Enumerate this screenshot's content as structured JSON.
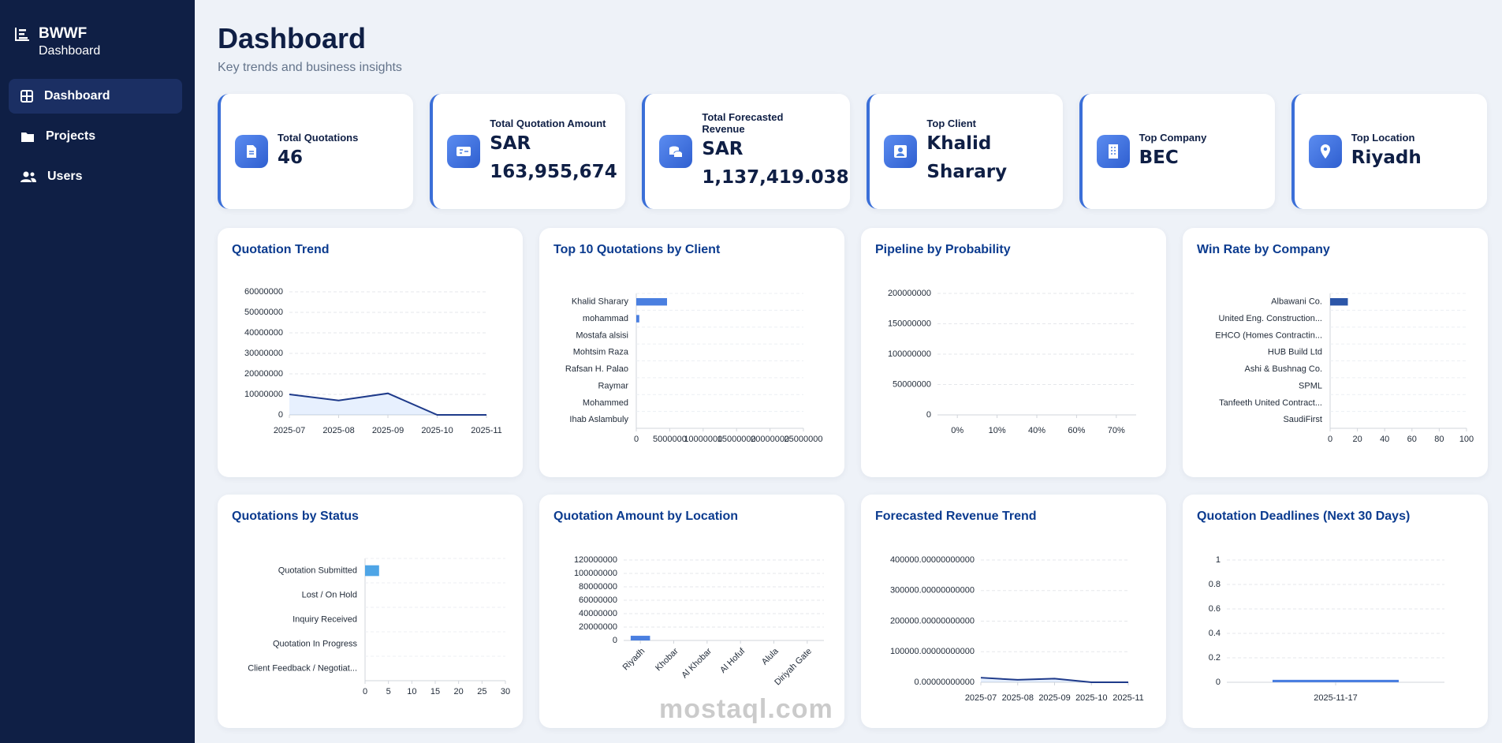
{
  "sidebar": {
    "brand": "BWWF",
    "brand_sub": "Dashboard",
    "nav": [
      "Dashboard",
      "Projects",
      "Users"
    ]
  },
  "header": {
    "title": "Dashboard",
    "subtitle": "Key trends and business insights"
  },
  "kpis": [
    {
      "label": "Total Quotations",
      "value": "46"
    },
    {
      "label": "Total Quotation Amount",
      "value": "SAR 163,955,674"
    },
    {
      "label": "Total Forecasted Revenue",
      "value": "SAR 1,137,419.038"
    },
    {
      "label": "Top Client",
      "value": "Khalid Sharary"
    },
    {
      "label": "Top Company",
      "value": "BEC"
    },
    {
      "label": "Top Location",
      "value": "Riyadh"
    }
  ],
  "chart_data": [
    {
      "type": "line",
      "title": "Quotation Trend",
      "categories": [
        "2025-07",
        "2025-08",
        "2025-09",
        "2025-10",
        "2025-11"
      ],
      "values": [
        10000000,
        7000000,
        10500000,
        0,
        0
      ],
      "color": "#1e3a8a",
      "area": true,
      "ylim": [
        0,
        60000000
      ],
      "yticks": [
        0,
        10000000,
        20000000,
        30000000,
        40000000,
        50000000,
        60000000
      ],
      "grid": true
    },
    {
      "type": "bar",
      "orientation": "horizontal",
      "title": "Top 10 Quotations by Client",
      "categories": [
        "Khalid Sharary",
        "mohammad",
        "Mostafa alsisi",
        "Mohtsim Raza",
        "Rafsan H. Palao",
        "Raymar",
        "Mohammed",
        "Ihab Aslambuly"
      ],
      "values": [
        4600000,
        450000,
        0,
        0,
        0,
        0,
        0,
        0
      ],
      "color": "#4a7fe0",
      "xlim": [
        0,
        25000000
      ],
      "xticks": [
        0,
        5000000,
        10000000,
        15000000,
        20000000,
        25000000
      ]
    },
    {
      "type": "bar",
      "title": "Pipeline by Probability",
      "categories": [
        "0%",
        "10%",
        "40%",
        "60%",
        "70%"
      ],
      "values": [
        0,
        0,
        0,
        0,
        0
      ],
      "color": "#4a7fe0",
      "ylim": [
        0,
        200000000
      ],
      "yticks": [
        0,
        50000000,
        100000000,
        150000000,
        200000000
      ],
      "grid": true
    },
    {
      "type": "bar",
      "orientation": "horizontal",
      "title": "Win Rate by Company",
      "categories": [
        "Albawani Co.",
        "United Eng. Construction...",
        "EHCO (Homes Contractin...",
        "HUB Build Ltd",
        "Ashi & Bushnag Co.",
        "SPML",
        "Tanfeeth United Contract...",
        "SaudiFirst"
      ],
      "values": [
        13,
        0,
        0,
        0,
        0,
        0,
        0,
        0
      ],
      "color": "#2c56a8",
      "xlim": [
        0,
        100
      ],
      "xticks": [
        0,
        20,
        40,
        60,
        80,
        100
      ]
    },
    {
      "type": "bar",
      "orientation": "horizontal",
      "title": "Quotations by Status",
      "categories": [
        "Quotation Submitted",
        "Lost / On Hold",
        "Inquiry Received",
        "Quotation In Progress",
        "Client Feedback / Negotiat..."
      ],
      "values": [
        3,
        0,
        0,
        0,
        0
      ],
      "color": "#4ea5e6",
      "xlim": [
        0,
        30
      ],
      "xticks": [
        0,
        5,
        10,
        15,
        20,
        25,
        30
      ]
    },
    {
      "type": "bar",
      "title": "Quotation Amount by Location",
      "categories": [
        "Riyadh",
        "Khobar",
        "Al Khobar",
        "Al Hofuf",
        "Alula",
        "Diriyah Gate"
      ],
      "values": [
        7000000,
        0,
        0,
        0,
        0,
        0
      ],
      "color": "#4a7fe0",
      "xlabel_rotation": -45,
      "ylim": [
        0,
        120000000
      ],
      "yticks": [
        0,
        20000000,
        40000000,
        60000000,
        80000000,
        100000000,
        120000000
      ],
      "grid": true
    },
    {
      "type": "line",
      "title": "Forecasted Revenue Trend",
      "categories": [
        "2025-07",
        "2025-08",
        "2025-09",
        "2025-10",
        "2025-11"
      ],
      "values": [
        15000,
        8000,
        12000,
        0,
        0
      ],
      "color": "#1e3a8a",
      "area": true,
      "ylim": [
        0,
        400000
      ],
      "yticks": [
        {
          "value": 0,
          "label": "0.00000000000"
        },
        {
          "value": 100000,
          "label": "100000.00000000000"
        },
        {
          "value": 200000,
          "label": "200000.00000000000"
        },
        {
          "value": 300000,
          "label": "300000.00000000000"
        },
        {
          "value": 400000,
          "label": "400000.00000000000"
        }
      ],
      "grid": true
    },
    {
      "type": "bar",
      "title": "Quotation Deadlines (Next 30 Days)",
      "categories": [
        "2025-11-17"
      ],
      "values": [
        0.02
      ],
      "color": "#4a7fe0",
      "ylim": [
        0,
        1
      ],
      "yticks": [
        0,
        0.2,
        0.4,
        0.6,
        0.8,
        1
      ],
      "grid": true
    }
  ],
  "watermark": "mostaql.com"
}
